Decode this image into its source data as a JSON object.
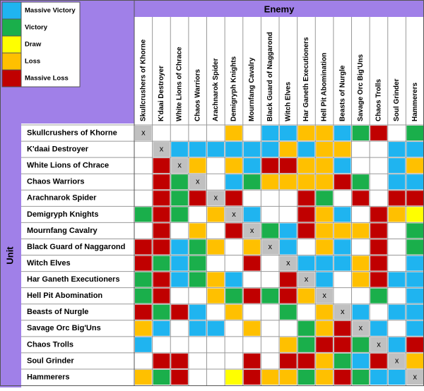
{
  "legend": [
    {
      "label": "Massive Victory",
      "color": "#1fb4f0"
    },
    {
      "label": "Victory",
      "color": "#1aaf4b"
    },
    {
      "label": "Draw",
      "color": "#ffff00"
    },
    {
      "label": "Loss",
      "color": "#ffc000"
    },
    {
      "label": "Massive Loss",
      "color": "#c00000"
    }
  ],
  "column_header": "Enemy",
  "row_header": "Unit",
  "diagonal_mark": "x",
  "columns": [
    "Skullcrushers of Khorne",
    "K'daai Destroyer",
    "White Lions of Chrace",
    "Chaos Warriors",
    "Arachnarok Spider",
    "Demigryph Knights",
    "Mournfang Cavalry",
    "Black Guard of Naggarond",
    "Witch Elves",
    "Har Ganeth Executioners",
    "Hell Pit Abomination",
    "Beasts of Nurgle",
    "Savage Orc Big'Uns",
    "Chaos Trolls",
    "Soul Grinder",
    "Hammerers"
  ],
  "rows": [
    {
      "label": "Skullcrushers of Khorne",
      "cells": [
        null,
        null,
        null,
        null,
        null,
        3,
        null,
        0,
        0,
        3,
        3,
        0,
        1,
        4,
        null,
        1
      ]
    },
    {
      "label": "K'daai Destroyer",
      "cells": [
        null,
        null,
        0,
        0,
        0,
        0,
        0,
        0,
        3,
        0,
        3,
        3,
        null,
        null,
        0,
        0
      ]
    },
    {
      "label": "White Lions of Chrace",
      "cells": [
        null,
        4,
        null,
        3,
        null,
        3,
        0,
        4,
        4,
        3,
        3,
        0,
        null,
        null,
        0,
        3
      ]
    },
    {
      "label": "Chaos Warriors",
      "cells": [
        null,
        4,
        1,
        null,
        null,
        0,
        1,
        3,
        3,
        3,
        3,
        4,
        1,
        null,
        0,
        0
      ]
    },
    {
      "label": "Arachnarok Spider",
      "cells": [
        null,
        4,
        1,
        4,
        null,
        4,
        null,
        null,
        null,
        4,
        1,
        null,
        4,
        null,
        4,
        4
      ]
    },
    {
      "label": "Demigryph Knights",
      "cells": [
        1,
        4,
        1,
        null,
        3,
        null,
        0,
        null,
        null,
        4,
        3,
        0,
        null,
        4,
        3,
        2
      ]
    },
    {
      "label": "Mournfang Cavalry",
      "cells": [
        null,
        4,
        null,
        3,
        null,
        4,
        null,
        1,
        0,
        4,
        3,
        3,
        3,
        4,
        null,
        1
      ]
    },
    {
      "label": "Black Guard of Naggarond",
      "cells": [
        4,
        4,
        0,
        1,
        3,
        null,
        3,
        null,
        0,
        null,
        3,
        0,
        null,
        4,
        null,
        1
      ]
    },
    {
      "label": "Witch Elves",
      "cells": [
        4,
        1,
        0,
        1,
        null,
        null,
        4,
        null,
        null,
        0,
        0,
        0,
        3,
        4,
        null,
        0
      ]
    },
    {
      "label": "Har Ganeth Executioners",
      "cells": [
        1,
        4,
        0,
        1,
        3,
        0,
        null,
        null,
        4,
        null,
        0,
        null,
        3,
        4,
        0,
        0
      ]
    },
    {
      "label": "Hell Pit Abomination",
      "cells": [
        1,
        4,
        null,
        null,
        3,
        1,
        4,
        1,
        4,
        3,
        null,
        null,
        null,
        1,
        null,
        0
      ]
    },
    {
      "label": "Beasts of Nurgle",
      "cells": [
        4,
        1,
        4,
        0,
        null,
        3,
        null,
        null,
        1,
        null,
        3,
        null,
        0,
        null,
        0,
        0
      ]
    },
    {
      "label": "Savage Orc Big'Uns",
      "cells": [
        3,
        0,
        null,
        0,
        0,
        null,
        3,
        null,
        null,
        1,
        3,
        4,
        null,
        0,
        null,
        0
      ]
    },
    {
      "label": "Chaos Trolls",
      "cells": [
        0,
        null,
        null,
        null,
        null,
        null,
        null,
        null,
        3,
        1,
        4,
        4,
        1,
        null,
        0,
        4
      ]
    },
    {
      "label": "Soul Grinder",
      "cells": [
        null,
        4,
        4,
        null,
        null,
        null,
        4,
        null,
        4,
        4,
        3,
        1,
        0,
        4,
        null,
        3
      ]
    },
    {
      "label": "Hammerers",
      "cells": [
        3,
        1,
        4,
        null,
        null,
        2,
        4,
        3,
        3,
        1,
        3,
        4,
        1,
        0,
        0,
        null
      ]
    }
  ]
}
